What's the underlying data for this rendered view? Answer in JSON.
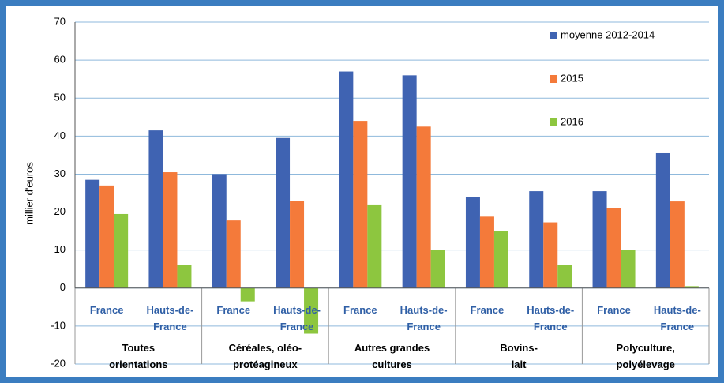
{
  "chart_data": {
    "type": "bar",
    "y_label": "millier d'euros",
    "categories": [
      "France",
      "Hauts-de-France",
      "France",
      "Hauts-de-France",
      "France",
      "Hauts-de-France",
      "France",
      "Hauts-de-France",
      "France",
      "Hauts-de-France"
    ],
    "groups": [
      "Toutes orientations",
      "Céréales, oléo-protéagineux",
      "Autres grandes cultures",
      "Bovins-lait",
      "Polyculture, polyélevage"
    ],
    "series": [
      {
        "name": "moyenne 2012-2014",
        "color": "#3f63b2",
        "values": [
          28.5,
          41.5,
          30,
          39.5,
          57,
          56,
          24,
          25.5,
          25.5,
          35.5
        ]
      },
      {
        "name": "2015",
        "color": "#f47a3a",
        "values": [
          27,
          30.5,
          17.8,
          23,
          44,
          42.5,
          18.8,
          17.3,
          21,
          22.8
        ]
      },
      {
        "name": "2016",
        "color": "#8dc63f",
        "values": [
          19.5,
          6,
          -3.5,
          -12,
          22,
          10,
          15,
          6,
          10,
          0.5
        ]
      }
    ],
    "ylim": [
      -20,
      70
    ],
    "yticks": [
      -20,
      -10,
      0,
      10,
      20,
      30,
      40,
      50,
      60,
      70
    ],
    "grid": true
  }
}
